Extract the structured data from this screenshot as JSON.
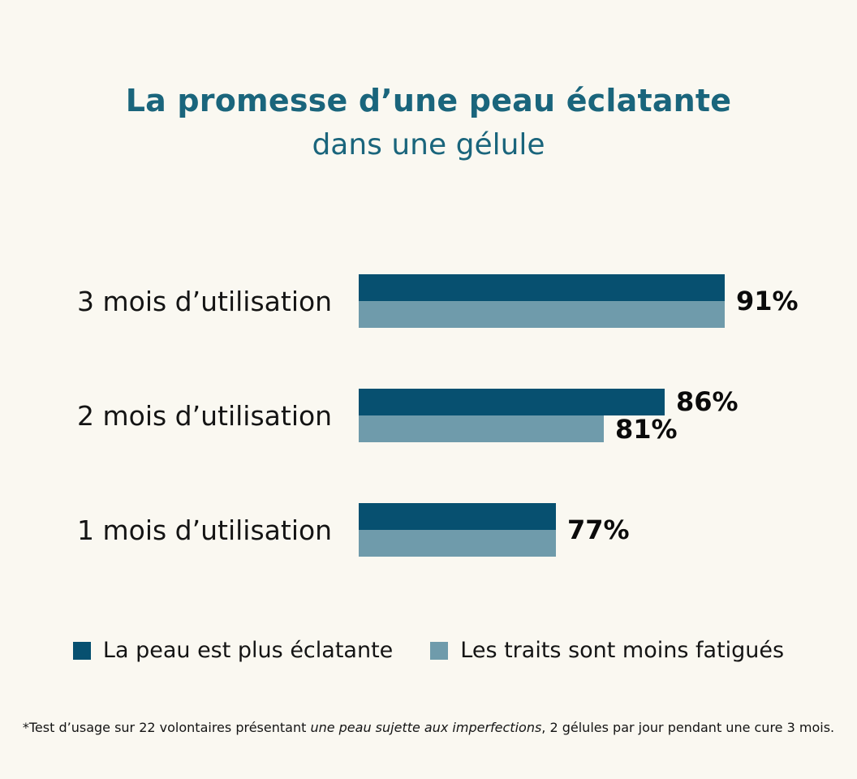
{
  "title": {
    "line1": "La promesse d’une peau éclatante",
    "line2": "dans une gélule"
  },
  "chart_data": {
    "type": "bar",
    "orientation": "horizontal",
    "categories": [
      "3 mois d’utilisation",
      "2 mois d’utilisation",
      "1 mois d’utilisation"
    ],
    "series": [
      {
        "name": "La peau est plus éclatante",
        "color": "#075070",
        "values": [
          91,
          86,
          77
        ]
      },
      {
        "name": "Les traits sont moins fatigués",
        "color": "#6f9bab",
        "values": [
          91,
          81,
          77
        ]
      }
    ],
    "value_labels": [
      {
        "combined": "91%"
      },
      {
        "dark": "86%",
        "light": "81%"
      },
      {
        "combined": "77%"
      }
    ],
    "xlim": [
      0,
      100
    ],
    "grid": false,
    "legend_position": "bottom"
  },
  "legend": {
    "items": [
      {
        "label": "La peau est plus éclatante",
        "color": "#075070"
      },
      {
        "label": "Les traits sont moins fatigués",
        "color": "#6f9bab"
      }
    ]
  },
  "footnote": {
    "text_before_italic": "*Test d’usage sur 22 volontaires présentant ",
    "italic_text": "une peau sujette aux imperfections",
    "text_after_italic": ", 2 gélules par jour pendant une cure 3 mois."
  },
  "colors": {
    "background": "#faf8f1",
    "title": "#1a657c",
    "bar_dark": "#075070",
    "bar_light": "#6f9bab",
    "text": "#141414"
  }
}
